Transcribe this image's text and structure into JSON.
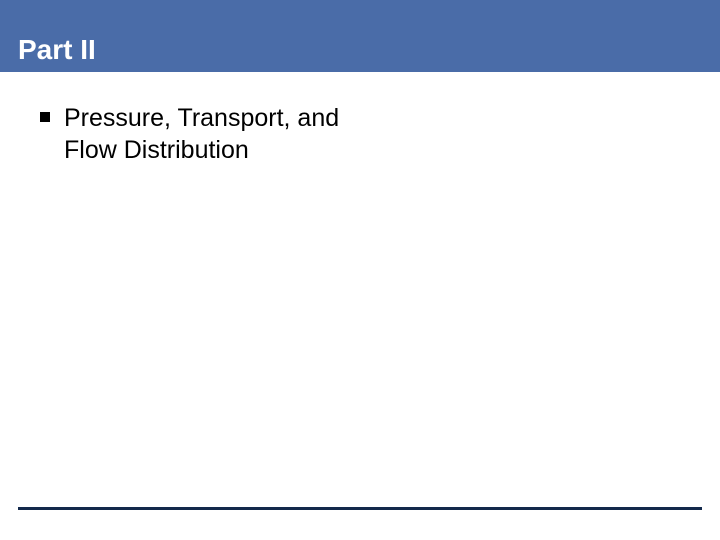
{
  "colors": {
    "band_bg": "#4a6ca8",
    "title_text": "#ffffff",
    "body_text": "#000000",
    "bullet": "#000000",
    "rule": "#13294b"
  },
  "title": "Part II",
  "bullets": [
    "Pressure, Transport, and Flow Distribution"
  ]
}
